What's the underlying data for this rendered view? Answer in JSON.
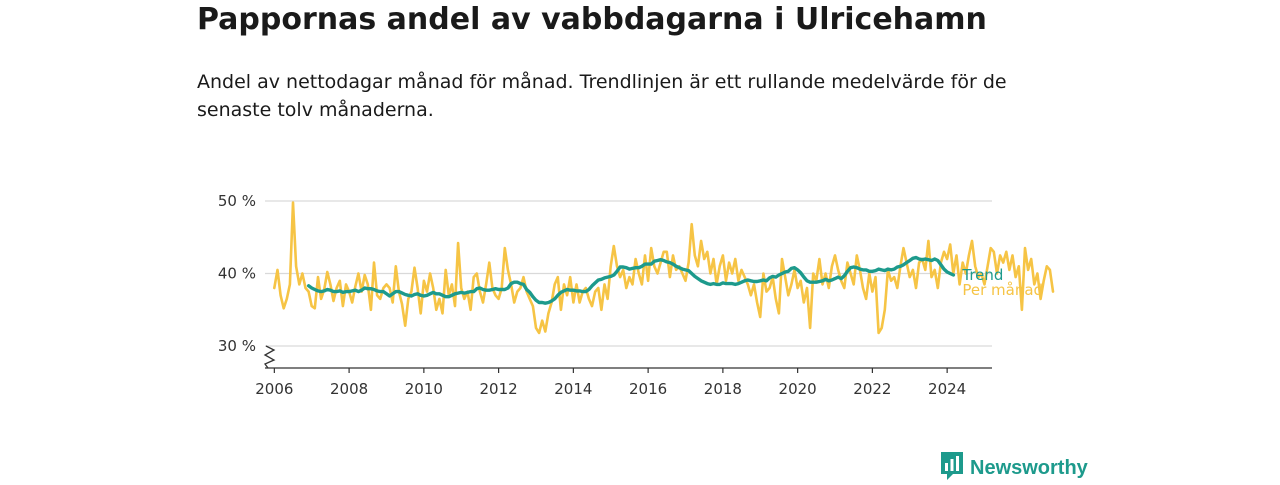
{
  "title": "Pappornas andel av vabbdagarna i Ulricehamn",
  "subtitle": "Andel av nettodagar månad för månad. Trendlinjen är ett rullande medelvärde för de senaste tolv månaderna.",
  "brand": {
    "name": "Newsworthy",
    "icon": "newsworthy-logo-icon",
    "color": "#1d9a8c"
  },
  "chart_data": {
    "type": "line",
    "y_unit": "%",
    "ylim": [
      30,
      50
    ],
    "y_axis_break": true,
    "yticks": [
      30,
      40,
      50
    ],
    "ytick_labels": [
      "30 %",
      "40 %",
      "50 %"
    ],
    "xlim": [
      2005.75,
      2025.2
    ],
    "xticks": [
      2006,
      2008,
      2010,
      2012,
      2014,
      2016,
      2018,
      2020,
      2022,
      2024
    ],
    "xtick_labels": [
      "2006",
      "2008",
      "2010",
      "2012",
      "2014",
      "2016",
      "2018",
      "2020",
      "2022",
      "2024"
    ],
    "grid": "horizontal",
    "legend": "direct labels at line ends, right",
    "series": [
      {
        "name": "Per månad",
        "color": "#f6c445",
        "start": 2006.0,
        "step": 0.08333,
        "values": [
          38.0,
          40.5,
          37.0,
          35.2,
          36.5,
          38.5,
          49.8,
          41.0,
          38.5,
          40.0,
          38.0,
          37.5,
          35.5,
          35.2,
          39.5,
          36.5,
          37.8,
          40.2,
          38.5,
          36.2,
          38.0,
          39.0,
          35.5,
          38.5,
          37.5,
          36.0,
          38.2,
          40.0,
          37.5,
          39.8,
          38.5,
          35.0,
          41.5,
          37.0,
          36.5,
          38.0,
          38.5,
          38.0,
          36.0,
          41.0,
          37.5,
          35.8,
          32.8,
          36.5,
          37.5,
          40.8,
          38.0,
          34.5,
          39.0,
          37.5,
          40.0,
          38.0,
          35.0,
          36.5,
          34.5,
          40.5,
          37.0,
          38.5,
          35.5,
          44.2,
          38.0,
          36.5,
          37.5,
          35.0,
          39.5,
          40.0,
          37.5,
          36.0,
          38.5,
          41.5,
          38.0,
          37.0,
          36.5,
          38.0,
          43.5,
          40.5,
          38.5,
          36.0,
          37.5,
          38.0,
          39.5,
          37.5,
          36.5,
          35.5,
          32.5,
          31.8,
          33.5,
          32.0,
          34.5,
          36.0,
          38.5,
          39.5,
          35.0,
          38.5,
          37.0,
          39.5,
          36.0,
          38.5,
          36.0,
          37.5,
          38.0,
          36.5,
          35.5,
          37.5,
          38.0,
          35.0,
          38.5,
          36.5,
          41.0,
          43.8,
          41.0,
          39.5,
          40.5,
          38.0,
          39.5,
          38.5,
          42.0,
          40.0,
          38.5,
          42.5,
          39.0,
          43.5,
          41.0,
          40.0,
          41.5,
          43.0,
          43.0,
          39.5,
          42.5,
          40.5,
          41.0,
          40.0,
          39.0,
          41.5,
          46.8,
          42.5,
          41.0,
          44.5,
          42.0,
          43.0,
          40.0,
          42.0,
          38.5,
          41.0,
          42.5,
          39.0,
          41.5,
          40.0,
          42.0,
          39.0,
          40.5,
          39.5,
          38.5,
          37.0,
          38.5,
          36.0,
          34.0,
          40.0,
          37.5,
          38.0,
          39.5,
          36.5,
          34.5,
          42.0,
          39.5,
          37.0,
          38.5,
          40.5,
          38.0,
          39.0,
          36.0,
          38.0,
          32.5,
          40.0,
          39.0,
          42.0,
          38.5,
          40.0,
          38.0,
          41.0,
          42.5,
          40.5,
          39.0,
          38.0,
          41.5,
          40.0,
          38.5,
          42.5,
          40.5,
          38.0,
          36.5,
          40.0,
          37.5,
          39.5,
          31.8,
          32.5,
          35.0,
          40.5,
          39.0,
          39.5,
          38.0,
          41.0,
          43.5,
          41.5,
          39.5,
          40.5,
          38.0,
          41.5,
          42.0,
          40.5,
          44.5,
          39.5,
          40.5,
          38.0,
          41.5,
          43.0,
          42.0,
          44.0,
          40.0,
          42.5,
          38.5,
          41.5,
          40.0,
          42.5,
          44.5,
          41.0,
          39.5,
          40.0,
          38.5,
          41.0,
          43.5,
          43.0,
          40.0,
          42.5,
          41.5,
          43.0,
          40.5,
          42.5,
          39.5,
          41.0,
          35.0,
          43.5,
          40.5,
          42.0,
          38.5,
          40.0,
          36.5,
          39.0,
          41.0,
          40.5,
          37.5
        ]
      },
      {
        "name": "Trend",
        "color": "#1d9a8c",
        "start": 2006.917,
        "step": 0.08333,
        "values": [
          38.3,
          38.0,
          37.8,
          37.6,
          37.5,
          37.6,
          37.8,
          37.7,
          37.5,
          37.5,
          37.6,
          37.4,
          37.5,
          37.5,
          37.6,
          37.7,
          37.5,
          37.7,
          38.0,
          37.9,
          37.9,
          37.8,
          37.6,
          37.5,
          37.5,
          37.2,
          36.9,
          37.2,
          37.5,
          37.5,
          37.3,
          37.1,
          37.0,
          36.9,
          37.1,
          37.2,
          37.0,
          36.9,
          37.0,
          37.2,
          37.4,
          37.2,
          37.2,
          37.0,
          36.8,
          36.8,
          37.0,
          37.2,
          37.3,
          37.4,
          37.3,
          37.4,
          37.5,
          37.5,
          37.9,
          38.0,
          37.8,
          37.7,
          37.7,
          37.8,
          37.9,
          37.8,
          37.8,
          37.8,
          38.0,
          38.6,
          38.8,
          38.8,
          38.6,
          38.5,
          37.8,
          37.4,
          36.8,
          36.3,
          36.0,
          36.0,
          35.9,
          36.0,
          36.2,
          36.5,
          37.0,
          37.4,
          37.6,
          37.8,
          37.7,
          37.7,
          37.6,
          37.6,
          37.5,
          37.5,
          37.8,
          38.3,
          38.7,
          39.1,
          39.2,
          39.4,
          39.5,
          39.6,
          39.8,
          40.3,
          40.9,
          40.9,
          40.8,
          40.6,
          40.7,
          40.8,
          40.8,
          41.0,
          41.3,
          41.3,
          41.3,
          41.7,
          41.8,
          41.9,
          41.8,
          41.6,
          41.5,
          41.3,
          41.0,
          40.8,
          40.6,
          40.5,
          40.4,
          40.0,
          39.6,
          39.3,
          39.0,
          38.8,
          38.6,
          38.5,
          38.6,
          38.5,
          38.5,
          38.7,
          38.6,
          38.6,
          38.6,
          38.5,
          38.6,
          38.8,
          39.0,
          39.1,
          39.0,
          38.9,
          38.9,
          39.0,
          39.1,
          39.0,
          39.4,
          39.6,
          39.5,
          39.8,
          40.0,
          40.2,
          40.3,
          40.7,
          40.8,
          40.5,
          40.1,
          39.5,
          39.0,
          38.8,
          38.8,
          38.8,
          38.9,
          39.0,
          39.2,
          39.0,
          39.1,
          39.3,
          39.5,
          39.3,
          39.7,
          40.3,
          40.8,
          40.9,
          40.8,
          40.6,
          40.5,
          40.5,
          40.3,
          40.3,
          40.4,
          40.6,
          40.5,
          40.4,
          40.6,
          40.5,
          40.6,
          40.9,
          41.0,
          41.2,
          41.5,
          41.8,
          42.1,
          42.2,
          42.0,
          41.9,
          42.0,
          41.9,
          41.8,
          42.0,
          41.8,
          41.2,
          40.6,
          40.2,
          40.0,
          39.8
        ]
      }
    ]
  }
}
